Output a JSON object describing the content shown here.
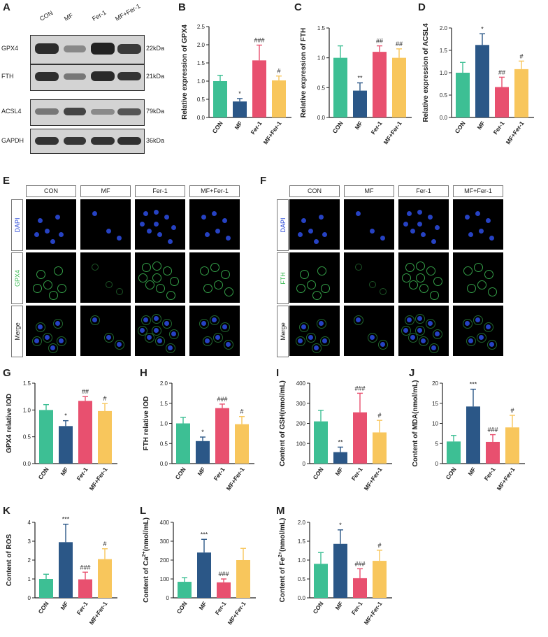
{
  "panels": {
    "A": "A",
    "B": "B",
    "C": "C",
    "D": "D",
    "E": "E",
    "F": "F",
    "G": "G",
    "H": "H",
    "I": "I",
    "J": "J",
    "K": "K",
    "L": "L",
    "M": "M"
  },
  "western_blot": {
    "lanes": [
      "CON",
      "MF",
      "Fer-1",
      "MF+Fer-1"
    ],
    "rows": [
      {
        "protein": "GPX4",
        "size": "22kDa"
      },
      {
        "protein": "FTH",
        "size": "21kDa"
      },
      {
        "protein": "ACSL4",
        "size": "79kDa"
      },
      {
        "protein": "GAPDH",
        "size": "36kDa"
      }
    ]
  },
  "if_panels": {
    "E": {
      "headers": [
        "CON",
        "MF",
        "Fer-1",
        "MF+Fer-1"
      ],
      "rows": [
        "DAPI",
        "GPX4",
        "Merge"
      ]
    },
    "F": {
      "headers": [
        "CON",
        "MF",
        "Fer-1",
        "MF+Fer-1"
      ],
      "rows": [
        "DAPI",
        "FTH",
        "Merge"
      ]
    }
  },
  "colors": {
    "CON": "#3dbf94",
    "MF": "#2b5787",
    "Fer-1": "#e8506f",
    "MF+Fer-1": "#f8c65c",
    "dapi": "#2a49d8",
    "green": "#3dbb55"
  },
  "chart_data": [
    {
      "id": "B",
      "type": "bar",
      "categories": [
        "CON",
        "MF",
        "Fer-1",
        "MF+Fer-1"
      ],
      "values": [
        1.0,
        0.44,
        1.57,
        1.02
      ],
      "errors": [
        0.16,
        0.08,
        0.42,
        0.12
      ],
      "sig": [
        "",
        "*",
        "###",
        "#"
      ],
      "ylabel": "Relative expression of GPX4",
      "ylim": [
        0,
        2.5
      ],
      "ticks": [
        "0.0",
        "0.5",
        "1.0",
        "1.5",
        "2.0",
        "2.5"
      ]
    },
    {
      "id": "C",
      "type": "bar",
      "categories": [
        "CON",
        "MF",
        "Fer-1",
        "MF+Fer-1"
      ],
      "values": [
        1.0,
        0.45,
        1.1,
        1.0
      ],
      "errors": [
        0.2,
        0.13,
        0.1,
        0.15
      ],
      "sig": [
        "",
        "**",
        "##",
        "##"
      ],
      "ylabel": "Relative expression of  FTH",
      "ylim": [
        0,
        1.5
      ],
      "ticks": [
        "0.0",
        "0.5",
        "1.0",
        "1.5"
      ]
    },
    {
      "id": "D",
      "type": "bar",
      "categories": [
        "CON",
        "MF",
        "Fer-1",
        "MF+Fer-1"
      ],
      "values": [
        1.0,
        1.62,
        0.68,
        1.08
      ],
      "errors": [
        0.23,
        0.25,
        0.22,
        0.18
      ],
      "sig": [
        "",
        "*",
        "##",
        "#"
      ],
      "ylabel": "Relative expression of ACSL4",
      "ylim": [
        0,
        2.0
      ],
      "ticks": [
        "0.0",
        "0.5",
        "1.0",
        "1.5",
        "2.0"
      ]
    },
    {
      "id": "G",
      "type": "bar",
      "categories": [
        "CON",
        "MF",
        "Fer-1",
        "MF+Fer-1"
      ],
      "values": [
        1.0,
        0.7,
        1.17,
        0.98
      ],
      "errors": [
        0.1,
        0.1,
        0.08,
        0.14
      ],
      "sig": [
        "",
        "*",
        "##",
        "#"
      ],
      "ylabel": "GPX4 relative IOD",
      "ylim": [
        0,
        1.5
      ],
      "ticks": [
        "0.0",
        "0.5",
        "1.0",
        "1.5"
      ]
    },
    {
      "id": "H",
      "type": "bar",
      "categories": [
        "CON",
        "MF",
        "Fer-1",
        "MF+Fer-1"
      ],
      "values": [
        1.0,
        0.56,
        1.38,
        0.98
      ],
      "errors": [
        0.15,
        0.1,
        0.1,
        0.19
      ],
      "sig": [
        "",
        "*",
        "###",
        "#"
      ],
      "ylabel": "FTH relative IOD",
      "ylim": [
        0,
        2.0
      ],
      "ticks": [
        "0.0",
        "0.5",
        "1.0",
        "1.5",
        "2.0"
      ]
    },
    {
      "id": "I",
      "type": "bar",
      "categories": [
        "CON",
        "MF",
        "Fer-1",
        "MF+Fer-1"
      ],
      "values": [
        210,
        57,
        255,
        155
      ],
      "errors": [
        55,
        25,
        95,
        60
      ],
      "sig": [
        "",
        "**",
        "###",
        "#"
      ],
      "ylabel": "Content of GSH(nmol/mL)",
      "ylim": [
        0,
        400
      ],
      "ticks": [
        "0",
        "100",
        "200",
        "300",
        "400"
      ]
    },
    {
      "id": "J",
      "type": "bar",
      "categories": [
        "CON",
        "MF",
        "Fer-1",
        "MF+Fer-1"
      ],
      "values": [
        5.5,
        14.2,
        5.4,
        9.0
      ],
      "errors": [
        1.5,
        4.3,
        1.8,
        3.0
      ],
      "sig": [
        "",
        "***",
        "###",
        "#"
      ],
      "ylabel": "Content of MDA(nmol/mL)",
      "ylim": [
        0,
        20
      ],
      "ticks": [
        "0",
        "5",
        "10",
        "15",
        "20"
      ]
    },
    {
      "id": "K",
      "type": "bar",
      "categories": [
        "CON",
        "MF",
        "Fer-1",
        "MF+Fer-1"
      ],
      "values": [
        1.0,
        2.95,
        0.98,
        2.05
      ],
      "errors": [
        0.25,
        0.95,
        0.38,
        0.55
      ],
      "sig": [
        "",
        "***",
        "###",
        "#"
      ],
      "ylabel": "Content of ROS",
      "ylim": [
        0,
        4
      ],
      "ticks": [
        "0",
        "1",
        "2",
        "3",
        "4"
      ]
    },
    {
      "id": "L",
      "type": "bar",
      "categories": [
        "CON",
        "MF",
        "Fer-1",
        "MF+Fer-1"
      ],
      "values": [
        85,
        240,
        82,
        200
      ],
      "errors": [
        22,
        70,
        18,
        62
      ],
      "sig": [
        "",
        "***",
        "###",
        ""
      ],
      "ylabel": "Content of Ca",
      "ylabel_sup": "2+",
      "ylabel_tail": "(nmol/mL)",
      "ylim": [
        0,
        400
      ],
      "ticks": [
        "0",
        "100",
        "200",
        "300",
        "400"
      ]
    },
    {
      "id": "M",
      "type": "bar",
      "categories": [
        "CON",
        "MF",
        "Fer-1",
        "MF+Fer-1"
      ],
      "values": [
        0.9,
        1.43,
        0.52,
        0.98
      ],
      "errors": [
        0.3,
        0.37,
        0.25,
        0.28
      ],
      "sig": [
        "",
        "*",
        "###",
        "#"
      ],
      "ylabel": "Content of Fe",
      "ylabel_sup": "2+",
      "ylabel_tail": "(nmol/mL)",
      "ylim": [
        0,
        2.0
      ],
      "ticks": [
        "0.0",
        "0.5",
        "1.0",
        "1.5",
        "2.0"
      ]
    }
  ]
}
